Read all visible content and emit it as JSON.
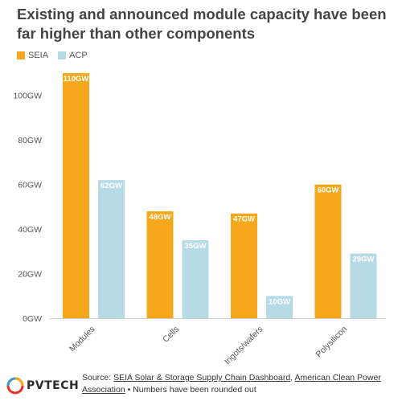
{
  "title": "Existing and announced module capacity have been far higher than other components",
  "legend": [
    {
      "label": "SEIA",
      "color": "#f5a81c"
    },
    {
      "label": "ACP",
      "color": "#b7dbe6"
    }
  ],
  "chart_data": {
    "type": "bar",
    "categories": [
      "Modules",
      "Cells",
      "Ingots/wafers",
      "Polysilicon"
    ],
    "series": [
      {
        "name": "SEIA",
        "values": [
          110,
          48,
          47,
          60
        ],
        "labels": [
          "110GW",
          "48GW",
          "47GW",
          "60GW"
        ],
        "color": "#f5a81c"
      },
      {
        "name": "ACP",
        "values": [
          62,
          35,
          10,
          29
        ],
        "labels": [
          "62GW",
          "35GW",
          "10GW",
          "29GW"
        ],
        "color": "#b7dbe6"
      }
    ],
    "yticks": [
      0,
      20,
      40,
      60,
      80,
      100
    ],
    "ytick_labels": [
      "0GW",
      "20GW",
      "40GW",
      "60GW",
      "80GW",
      "100GW"
    ],
    "ylim": [
      0,
      110
    ],
    "grid": false,
    "legend_position": "top-left"
  },
  "footer": {
    "logo_text": "PVTECH",
    "source_prefix": "Source: ",
    "source_link_1": "SEIA Solar & Storage Supply Chain Dashboard",
    "source_sep": ", ",
    "source_link_2": "American Clean Power Association",
    "source_suffix": " • Numbers have been rounded out"
  }
}
